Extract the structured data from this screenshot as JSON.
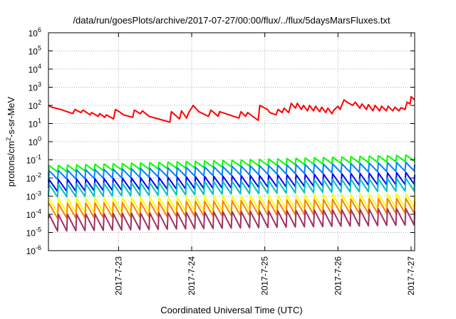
{
  "chart_data": {
    "type": "line",
    "title": "/data/run/goesPlots/archive/2017-07-27/00:00/flux/../flux/5daysMarsFluxes.txt",
    "xlabel": "Coordinated Universal Time (UTC)",
    "ylabel_parts": [
      "protons/cm",
      "2",
      "-s-sr-MeV"
    ],
    "yscale": "log",
    "ylim": [
      1e-06,
      1000000.0
    ],
    "xlim_days": [
      "2017-07-22 01:00",
      "2017-07-27 01:10"
    ],
    "grid": true,
    "x_ticks": [
      {
        "label": "2017-7-23",
        "date": "2017-07-23"
      },
      {
        "label": "2017-7-24",
        "date": "2017-07-24"
      },
      {
        "label": "2017-7-25",
        "date": "2017-07-25"
      },
      {
        "label": "2017-7-26",
        "date": "2017-07-26"
      },
      {
        "label": "2017-7-27",
        "date": "2017-07-27"
      }
    ],
    "y_ticks": [
      {
        "base": "10",
        "exp": "-6",
        "value": 1e-06
      },
      {
        "base": "10",
        "exp": "-5",
        "value": 1e-05
      },
      {
        "base": "10",
        "exp": "-4",
        "value": 0.0001
      },
      {
        "base": "10",
        "exp": "-3",
        "value": 0.001
      },
      {
        "base": "10",
        "exp": "-2",
        "value": 0.01
      },
      {
        "base": "10",
        "exp": "-1",
        "value": 0.1
      },
      {
        "base": "10",
        "exp": "0",
        "value": 1
      },
      {
        "base": "10",
        "exp": "1",
        "value": 10
      },
      {
        "base": "10",
        "exp": "2",
        "value": 100
      },
      {
        "base": "10",
        "exp": "3",
        "value": 1000
      },
      {
        "base": "10",
        "exp": "4",
        "value": 10000
      },
      {
        "base": "10",
        "exp": "5",
        "value": 100000
      },
      {
        "base": "10",
        "exp": "6",
        "value": 1000000
      }
    ],
    "series": [
      {
        "color": "#ff0000",
        "x": [
          "2017-07-22 01:00",
          "2017-07-22 02:00",
          "2017-07-22 05:00",
          "2017-07-22 09:00",
          "2017-07-22 09:40",
          "2017-07-22 11:40",
          "2017-07-22 12:20",
          "2017-07-22 14:40",
          "2017-07-22 15:10",
          "2017-07-22 17:20",
          "2017-07-22 17:50",
          "2017-07-22 19:30",
          "2017-07-22 20:00",
          "2017-07-22 22:20",
          "2017-07-22 23:00",
          "2017-07-23 00:40",
          "2017-07-23 01:40",
          "2017-07-23 04:40",
          "2017-07-23 05:10",
          "2017-07-23 07:10",
          "2017-07-23 07:50",
          "2017-07-23 10:00",
          "2017-07-23 16:50",
          "2017-07-23 17:20",
          "2017-07-23 20:00",
          "2017-07-23 20:40",
          "2017-07-23 22:20",
          "2017-07-23 23:00",
          "2017-07-24 00:30",
          "2017-07-24 02:20",
          "2017-07-24 05:30",
          "2017-07-24 06:20",
          "2017-07-24 08:40",
          "2017-07-24 09:10",
          "2017-07-24 15:30",
          "2017-07-24 16:10",
          "2017-07-24 17:40",
          "2017-07-24 18:20",
          "2017-07-24 21:50",
          "2017-07-24 22:20",
          "2017-07-25 00:50",
          "2017-07-25 01:40",
          "2017-07-25 03:40",
          "2017-07-25 04:20",
          "2017-07-25 05:40",
          "2017-07-25 06:20",
          "2017-07-25 07:50",
          "2017-07-25 08:40",
          "2017-07-25 10:00",
          "2017-07-25 10:40",
          "2017-07-25 12:00",
          "2017-07-25 12:40",
          "2017-07-25 14:00",
          "2017-07-25 14:40",
          "2017-07-25 16:00",
          "2017-07-25 16:40",
          "2017-07-25 18:00",
          "2017-07-25 18:40",
          "2017-07-25 20:00",
          "2017-07-25 20:40",
          "2017-07-25 22:00",
          "2017-07-25 22:40",
          "2017-07-26 00:00",
          "2017-07-26 00:40",
          "2017-07-26 02:00",
          "2017-07-26 03:00",
          "2017-07-26 04:50",
          "2017-07-26 05:40",
          "2017-07-26 07:10",
          "2017-07-26 07:50",
          "2017-07-26 09:20",
          "2017-07-26 10:00",
          "2017-07-26 11:30",
          "2017-07-26 12:10",
          "2017-07-26 13:40",
          "2017-07-26 14:20",
          "2017-07-26 15:50",
          "2017-07-26 16:30",
          "2017-07-26 18:00",
          "2017-07-26 18:40",
          "2017-07-26 20:00",
          "2017-07-26 20:40",
          "2017-07-26 22:00",
          "2017-07-26 22:40",
          "2017-07-26 23:40",
          "2017-07-27 00:00",
          "2017-07-27 01:10"
        ],
        "values": [
          100,
          80,
          60,
          35,
          60,
          40,
          55,
          30,
          40,
          25,
          35,
          22,
          30,
          18,
          60,
          40,
          30,
          22,
          55,
          35,
          50,
          25,
          12,
          45,
          18,
          50,
          20,
          40,
          100,
          45,
          25,
          55,
          25,
          45,
          20,
          45,
          25,
          40,
          15,
          100,
          60,
          40,
          30,
          60,
          40,
          70,
          40,
          130,
          70,
          130,
          60,
          100,
          50,
          100,
          50,
          90,
          45,
          80,
          40,
          70,
          35,
          55,
          90,
          60,
          200,
          150,
          100,
          150,
          70,
          120,
          60,
          110,
          50,
          100,
          50,
          90,
          50,
          90,
          50,
          80,
          50,
          75,
          60,
          150,
          120,
          300,
          200
        ]
      },
      {
        "color": "#00ff00",
        "base": 0.022,
        "amp": 2.2,
        "trend": 4.0,
        "start": 0.012
      },
      {
        "color": "#0080ff",
        "base": 0.0085,
        "amp": 3.0,
        "trend": 3.0,
        "start": 0.006
      },
      {
        "color": "#0000ff",
        "base": 0.0018,
        "amp": 4.5,
        "trend": 2.6,
        "start": 0.003
      },
      {
        "color": "#00c0c0",
        "base": 0.0009,
        "amp": 5.0,
        "trend": 2.2,
        "start": 0.001
      },
      {
        "color": "#ffff00",
        "base": 0.00012,
        "amp": 6.0,
        "trend": 2.0,
        "start": 0.0004
      },
      {
        "color": "#ff8000",
        "base": 6e-05,
        "amp": 6.5,
        "trend": 2.0,
        "start": 0.0003
      },
      {
        "color": "#a03060",
        "base": 1.2e-05,
        "amp": 8.0,
        "trend": 2.2,
        "start": 6e-05
      }
    ],
    "cycle_hours": 3.0
  }
}
